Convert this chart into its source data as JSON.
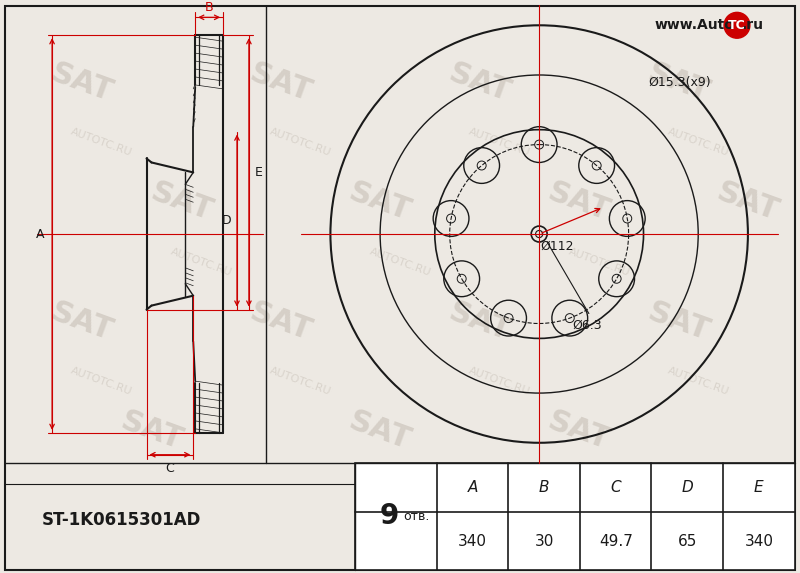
{
  "bg_color": "#ede9e3",
  "line_color": "#1a1a1a",
  "red_color": "#cc0000",
  "title_text": "ST-1K0615301AD",
  "otv_text": "отв.",
  "dim_A": "340",
  "dim_B": "30",
  "dim_C": "49.7",
  "dim_D": "65",
  "dim_E": "340",
  "disc_diameter_label": "Ø15.3(x9)",
  "pcd_label": "Ø112",
  "center_hole_label": "Ø6.3",
  "watermark_text": "www.Auto",
  "watermark_text2": "TC",
  "watermark_text3": ".ru",
  "sat_wm_color": "#ccc5bc",
  "autotc_wm_color": "#b8b0a5",
  "table_headers": [
    "A",
    "B",
    "C",
    "D",
    "E"
  ],
  "table_values": [
    "340",
    "30",
    "49.7",
    "65",
    "340"
  ],
  "n_holes": 9
}
